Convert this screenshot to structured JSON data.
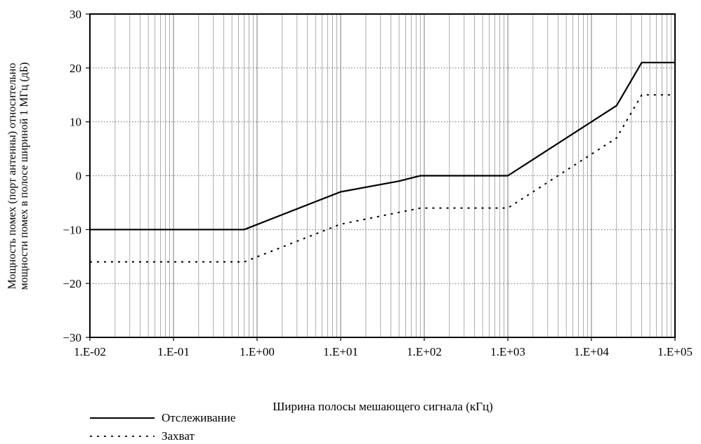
{
  "chart_data": {
    "type": "line",
    "xscale": "log",
    "xlim": [
      0.01,
      100000
    ],
    "ylim": [
      -30,
      30
    ],
    "x_tick_labels": [
      "1.E-02",
      "1.E-01",
      "1.E+00",
      "1.E+01",
      "1.E+02",
      "1.E+03",
      "1.E+04",
      "1.E+05"
    ],
    "y_tick_labels": [
      "30",
      "20",
      "10",
      "0",
      "−10",
      "−20",
      "−30"
    ],
    "y_ticks": [
      30,
      20,
      10,
      0,
      -10,
      -20,
      -30
    ],
    "xlabel": "Ширина полосы мешающего сигнала (кГц)",
    "ylabel_lines": [
      "Мощность помех (порт антенны) относительно",
      "мощности помех в полосе шириной 1 МГц (дБ)"
    ],
    "grid": true,
    "legend_position": "bottom-left",
    "series": [
      {
        "name": "Отслеживание",
        "style": "solid",
        "color": "#000000",
        "points": [
          [
            0.01,
            -10
          ],
          [
            0.7,
            -10
          ],
          [
            10,
            -3
          ],
          [
            50,
            -1
          ],
          [
            90,
            0
          ],
          [
            1000,
            0
          ],
          [
            10000,
            10
          ],
          [
            20000,
            13
          ],
          [
            40000,
            21
          ],
          [
            100000,
            21
          ]
        ]
      },
      {
        "name": "Захват",
        "style": "dotted",
        "color": "#000000",
        "points": [
          [
            0.01,
            -16
          ],
          [
            0.7,
            -16
          ],
          [
            10,
            -9
          ],
          [
            90,
            -6
          ],
          [
            1000,
            -6
          ],
          [
            10000,
            4
          ],
          [
            20000,
            7
          ],
          [
            40000,
            15
          ],
          [
            100000,
            15
          ]
        ]
      }
    ]
  }
}
